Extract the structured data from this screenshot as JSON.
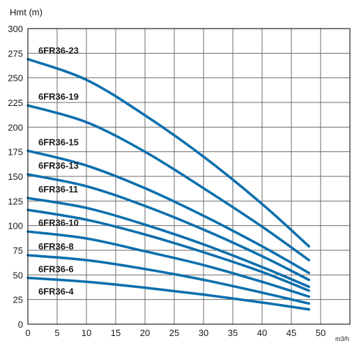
{
  "chart_data": {
    "type": "line",
    "title": "",
    "ylabel": "Hmt (m)",
    "xlabel": "m3/h",
    "xlim": [
      0,
      55
    ],
    "ylim": [
      0,
      300
    ],
    "xticks": [
      0,
      5,
      10,
      15,
      20,
      25,
      30,
      35,
      40,
      45,
      50
    ],
    "yticks": [
      0,
      25,
      50,
      75,
      100,
      125,
      150,
      175,
      200,
      225,
      250,
      275,
      300
    ],
    "grid": true,
    "colors": {
      "series": "#0d6fad",
      "grid": "#6b6b6b",
      "frame": "#222222"
    },
    "series": [
      {
        "name": "6FR36-23",
        "x": [
          0,
          10,
          20,
          30,
          40,
          48
        ],
        "y": [
          269,
          248,
          212,
          170,
          122,
          79
        ]
      },
      {
        "name": "6FR36-19",
        "x": [
          0,
          10,
          20,
          30,
          40,
          48
        ],
        "y": [
          222,
          205,
          175,
          138,
          99,
          65
        ]
      },
      {
        "name": "6FR36-15",
        "x": [
          0,
          10,
          20,
          30,
          40,
          48
        ],
        "y": [
          176,
          161,
          138,
          110,
          79,
          52
        ]
      },
      {
        "name": "6FR36-13",
        "x": [
          0,
          10,
          20,
          30,
          40,
          48
        ],
        "y": [
          152,
          140,
          120,
          96,
          69,
          45
        ]
      },
      {
        "name": "6FR36-11",
        "x": [
          0,
          10,
          20,
          30,
          40,
          48
        ],
        "y": [
          128,
          118,
          101,
          81,
          58,
          38
        ]
      },
      {
        "name": "",
        "x": [
          0,
          10,
          20,
          30,
          40,
          48
        ],
        "y": [
          116,
          106,
          91,
          73,
          53,
          34
        ]
      },
      {
        "name": "6FR36-10",
        "x": [
          0,
          10,
          20,
          30,
          40,
          48
        ],
        "y": [
          94,
          87,
          74,
          60,
          43,
          28
        ]
      },
      {
        "name": "6FR36-8",
        "x": [
          0,
          10,
          20,
          30,
          40,
          48
        ],
        "y": [
          70,
          65,
          56,
          45,
          32,
          21
        ]
      },
      {
        "name": "6FR36-6",
        "x": [
          0,
          10,
          20,
          30,
          40,
          48
        ],
        "y": [
          47,
          43,
          37,
          30,
          22,
          15
        ]
      },
      {
        "name": "6FR36-4",
        "x": [],
        "y": []
      }
    ]
  }
}
